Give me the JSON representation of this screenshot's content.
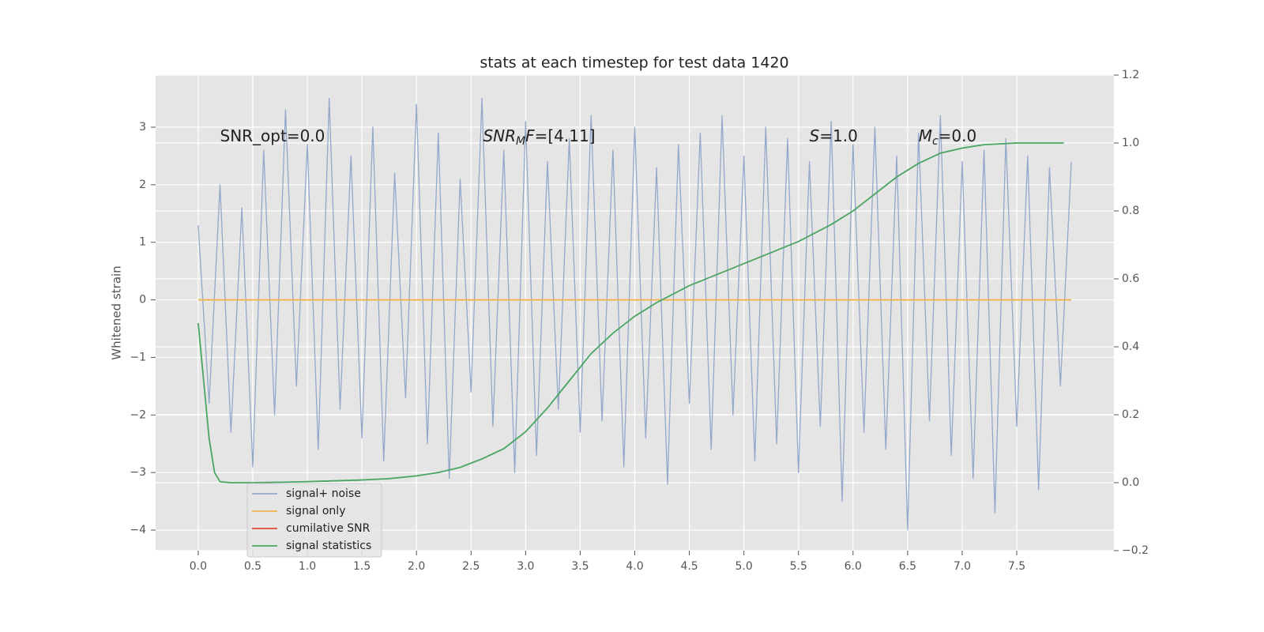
{
  "chart_data": {
    "type": "line",
    "title": "stats at each timestep for test data 1420",
    "ylabel": "Whitened strain",
    "xlim": [
      -0.39,
      8.39
    ],
    "ylim": [
      -4.357,
      3.906
    ],
    "y2lim": [
      -0.2,
      1.2
    ],
    "xticks": [
      {
        "value": 0,
        "label": "0.0"
      },
      0.5,
      {
        "value": 1,
        "label": "1.0"
      },
      1.5,
      {
        "value": 2,
        "label": "2.0"
      },
      2.5,
      {
        "value": 3,
        "label": "3.0"
      },
      3.5,
      {
        "value": 4,
        "label": "4.0"
      },
      4.5,
      {
        "value": 5,
        "label": "5.0"
      },
      5.5,
      {
        "value": 6,
        "label": "6.0"
      },
      6.5,
      {
        "value": 7,
        "label": "7.0"
      },
      7.5
    ],
    "yticks": [
      {
        "value": -4,
        "label": "−4"
      },
      {
        "value": -3,
        "label": "−3"
      },
      {
        "value": -2,
        "label": "−2"
      },
      {
        "value": -1,
        "label": "−1"
      },
      0,
      1,
      2,
      3
    ],
    "y2ticks": [
      {
        "value": -0.2,
        "label": "−0.2"
      },
      {
        "value": 0,
        "label": "0.0"
      },
      0.2,
      0.4,
      0.6,
      0.8,
      {
        "value": 1,
        "label": "1.0"
      },
      1.2
    ],
    "grid": true,
    "legend": "lower left",
    "series": [
      {
        "name": "signal+ noise",
        "color": "#94a8ca",
        "x": [
          0,
          0.1,
          0.2,
          0.3,
          0.4,
          0.5,
          0.6,
          0.7,
          0.8,
          0.9,
          1.0,
          1.1,
          1.2,
          1.3,
          1.4,
          1.5,
          1.6,
          1.7,
          1.8,
          1.9,
          2.0,
          2.1,
          2.2,
          2.3,
          2.4,
          2.5,
          2.6,
          2.7,
          2.8,
          2.9,
          3.0,
          3.1,
          3.2,
          3.3,
          3.4,
          3.5,
          3.6,
          3.7,
          3.8,
          3.9,
          4.0,
          4.1,
          4.2,
          4.3,
          4.4,
          4.5,
          4.6,
          4.7,
          4.8,
          4.9,
          5.0,
          5.1,
          5.2,
          5.3,
          5.4,
          5.5,
          5.6,
          5.7,
          5.8,
          5.9,
          6.0,
          6.1,
          6.2,
          6.3,
          6.4,
          6.5,
          6.6,
          6.7,
          6.8,
          6.9,
          7.0,
          7.1,
          7.2,
          7.3,
          7.4,
          7.5,
          7.6,
          7.7,
          7.8,
          7.9,
          8.0
        ],
        "values": [
          1.3,
          -1.8,
          2.0,
          -2.3,
          1.6,
          -2.9,
          2.6,
          -2.0,
          3.3,
          -1.5,
          2.7,
          -2.6,
          3.5,
          -1.9,
          2.5,
          -2.4,
          3.0,
          -2.8,
          2.2,
          -1.7,
          3.4,
          -2.5,
          2.9,
          -3.1,
          2.1,
          -1.6,
          3.5,
          -2.2,
          2.6,
          -3.0,
          3.1,
          -2.7,
          2.4,
          -1.9,
          2.8,
          -2.3,
          3.2,
          -2.1,
          2.6,
          -2.9,
          3.0,
          -2.4,
          2.3,
          -3.2,
          2.7,
          -1.8,
          2.9,
          -2.6,
          3.2,
          -2.0,
          2.5,
          -2.8,
          3.0,
          -2.5,
          2.8,
          -3.0,
          2.4,
          -2.2,
          3.1,
          -3.5,
          2.7,
          -2.3,
          3.0,
          -2.6,
          2.5,
          -4.0,
          2.9,
          -2.1,
          3.2,
          -2.7,
          2.4,
          -3.1,
          2.6,
          -3.7,
          2.8,
          -2.2,
          2.5,
          -3.3,
          2.3,
          -1.5,
          2.4
        ]
      },
      {
        "name": "signal only",
        "color": "#f0b44f",
        "x": [
          0,
          8.0
        ],
        "values": [
          0,
          0
        ]
      },
      {
        "name": "cumilative SNR",
        "color": "#e24a33",
        "x": [],
        "values": []
      },
      {
        "name": "signal statistics",
        "color": "#4aa564",
        "axis": "y2",
        "x": [
          0,
          0.1,
          0.15,
          0.2,
          0.3,
          0.5,
          1.0,
          1.5,
          1.75,
          2.0,
          2.2,
          2.4,
          2.6,
          2.8,
          3.0,
          3.2,
          3.4,
          3.5,
          3.6,
          3.8,
          4.0,
          4.2,
          4.5,
          5.0,
          5.5,
          5.8,
          6.0,
          6.2,
          6.4,
          6.6,
          6.8,
          7.0,
          7.2,
          7.5,
          7.93
        ],
        "values": [
          0.47,
          0.13,
          0.03,
          0.003,
          0.0,
          0.0,
          0.003,
          0.008,
          0.012,
          0.02,
          0.03,
          0.045,
          0.07,
          0.1,
          0.15,
          0.22,
          0.3,
          0.34,
          0.38,
          0.44,
          0.49,
          0.53,
          0.58,
          0.645,
          0.71,
          0.76,
          0.8,
          0.85,
          0.9,
          0.94,
          0.97,
          0.985,
          0.995,
          1.0,
          1.0
        ]
      }
    ],
    "annotations": [
      {
        "x": 0.2,
        "y": 2.835,
        "segments": [
          {
            "text": "SNR_opt=0.0",
            "italic": false,
            "sub": false
          }
        ]
      },
      {
        "x": 2.61,
        "y": 2.835,
        "segments": [
          {
            "text": "SNR",
            "italic": true,
            "sub": false
          },
          {
            "text": "M",
            "italic": true,
            "sub": true
          },
          {
            "text": "F",
            "italic": true,
            "sub": false
          },
          {
            "text": "=[4.11]",
            "italic": false,
            "sub": false
          }
        ]
      },
      {
        "x": 5.6,
        "y": 2.835,
        "segments": [
          {
            "text": "S",
            "italic": true,
            "sub": false
          },
          {
            "text": "=1.0",
            "italic": false,
            "sub": false
          }
        ]
      },
      {
        "x": 6.6,
        "y": 2.835,
        "segments": [
          {
            "text": "M",
            "italic": true,
            "sub": false
          },
          {
            "text": "c",
            "italic": true,
            "sub": true
          },
          {
            "text": "=0.0",
            "italic": false,
            "sub": false
          }
        ]
      }
    ]
  }
}
